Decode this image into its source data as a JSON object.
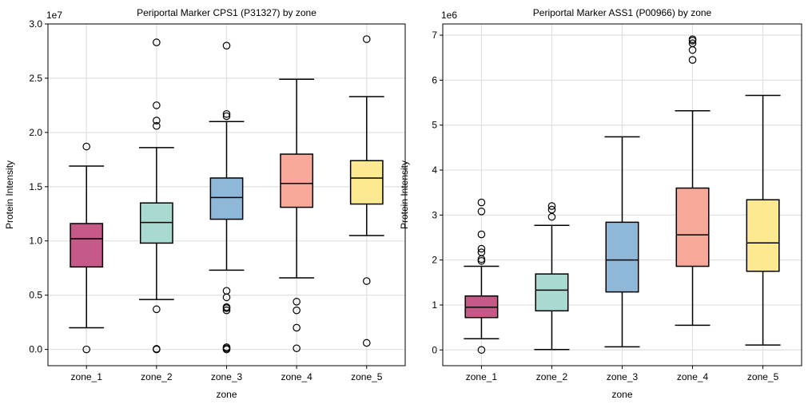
{
  "palette": [
    "#c55a88",
    "#a8dad2",
    "#8fb8d8",
    "#f7a898",
    "#fde98f"
  ],
  "chart_data": [
    {
      "type": "box",
      "title": "Periportal Marker CPS1 (P31327) by zone",
      "xlabel": "zone",
      "ylabel": "Protein Intensity",
      "offset_text": "1e7",
      "ylim": [
        -0.15,
        3.0
      ],
      "yticks": [
        0.0,
        0.5,
        1.0,
        1.5,
        2.0,
        2.5,
        3.0
      ],
      "ytick_labels": [
        "0.0",
        "0.5",
        "1.0",
        "1.5",
        "2.0",
        "2.5",
        "3.0"
      ],
      "grid": true,
      "categories": [
        "zone_1",
        "zone_2",
        "zone_3",
        "zone_4",
        "zone_5"
      ],
      "boxes": [
        {
          "whisker_low": 0.2,
          "q1": 0.76,
          "median": 1.02,
          "q3": 1.16,
          "whisker_high": 1.69,
          "outliers": [
            0.0,
            1.87
          ]
        },
        {
          "whisker_low": 0.46,
          "q1": 0.98,
          "median": 1.17,
          "q3": 1.35,
          "whisker_high": 1.86,
          "outliers": [
            0.0,
            0.005,
            0.37,
            2.06,
            2.11,
            2.25,
            2.83
          ]
        },
        {
          "whisker_low": 0.73,
          "q1": 1.2,
          "median": 1.4,
          "q3": 1.58,
          "whisker_high": 2.1,
          "outliers": [
            0.0,
            0.01,
            0.02,
            0.36,
            0.38,
            0.39,
            0.48,
            0.54,
            2.15,
            2.17,
            2.8
          ]
        },
        {
          "whisker_low": 0.66,
          "q1": 1.31,
          "median": 1.53,
          "q3": 1.8,
          "whisker_high": 2.49,
          "outliers": [
            0.01,
            0.2,
            0.36,
            0.44
          ]
        },
        {
          "whisker_low": 1.05,
          "q1": 1.34,
          "median": 1.58,
          "q3": 1.74,
          "whisker_high": 2.33,
          "outliers": [
            0.06,
            0.63,
            2.86
          ]
        }
      ]
    },
    {
      "type": "box",
      "title": "Periportal Marker ASS1 (P00966) by zone",
      "xlabel": "zone",
      "ylabel": "Protein Intensity",
      "offset_text": "1e6",
      "ylim": [
        -0.35,
        7.25
      ],
      "yticks": [
        0,
        1,
        2,
        3,
        4,
        5,
        6,
        7
      ],
      "ytick_labels": [
        "0",
        "1",
        "2",
        "3",
        "4",
        "5",
        "6",
        "7"
      ],
      "grid": true,
      "categories": [
        "zone_1",
        "zone_2",
        "zone_3",
        "zone_4",
        "zone_5"
      ],
      "boxes": [
        {
          "whisker_low": 0.25,
          "q1": 0.72,
          "median": 0.95,
          "q3": 1.2,
          "whisker_high": 1.86,
          "outliers": [
            0.0,
            1.98,
            2.02,
            2.17,
            2.25,
            2.57,
            3.08,
            3.28
          ]
        },
        {
          "whisker_low": 0.01,
          "q1": 0.87,
          "median": 1.33,
          "q3": 1.69,
          "whisker_high": 2.77,
          "outliers": [
            2.96,
            3.12,
            3.2
          ]
        },
        {
          "whisker_low": 0.07,
          "q1": 1.29,
          "median": 2.0,
          "q3": 2.84,
          "whisker_high": 4.74,
          "outliers": []
        },
        {
          "whisker_low": 0.55,
          "q1": 1.86,
          "median": 2.56,
          "q3": 3.6,
          "whisker_high": 5.32,
          "outliers": [
            6.45,
            6.67,
            6.82,
            6.88,
            6.91
          ]
        },
        {
          "whisker_low": 0.11,
          "q1": 1.75,
          "median": 2.38,
          "q3": 3.34,
          "whisker_high": 5.66,
          "outliers": []
        }
      ]
    }
  ]
}
